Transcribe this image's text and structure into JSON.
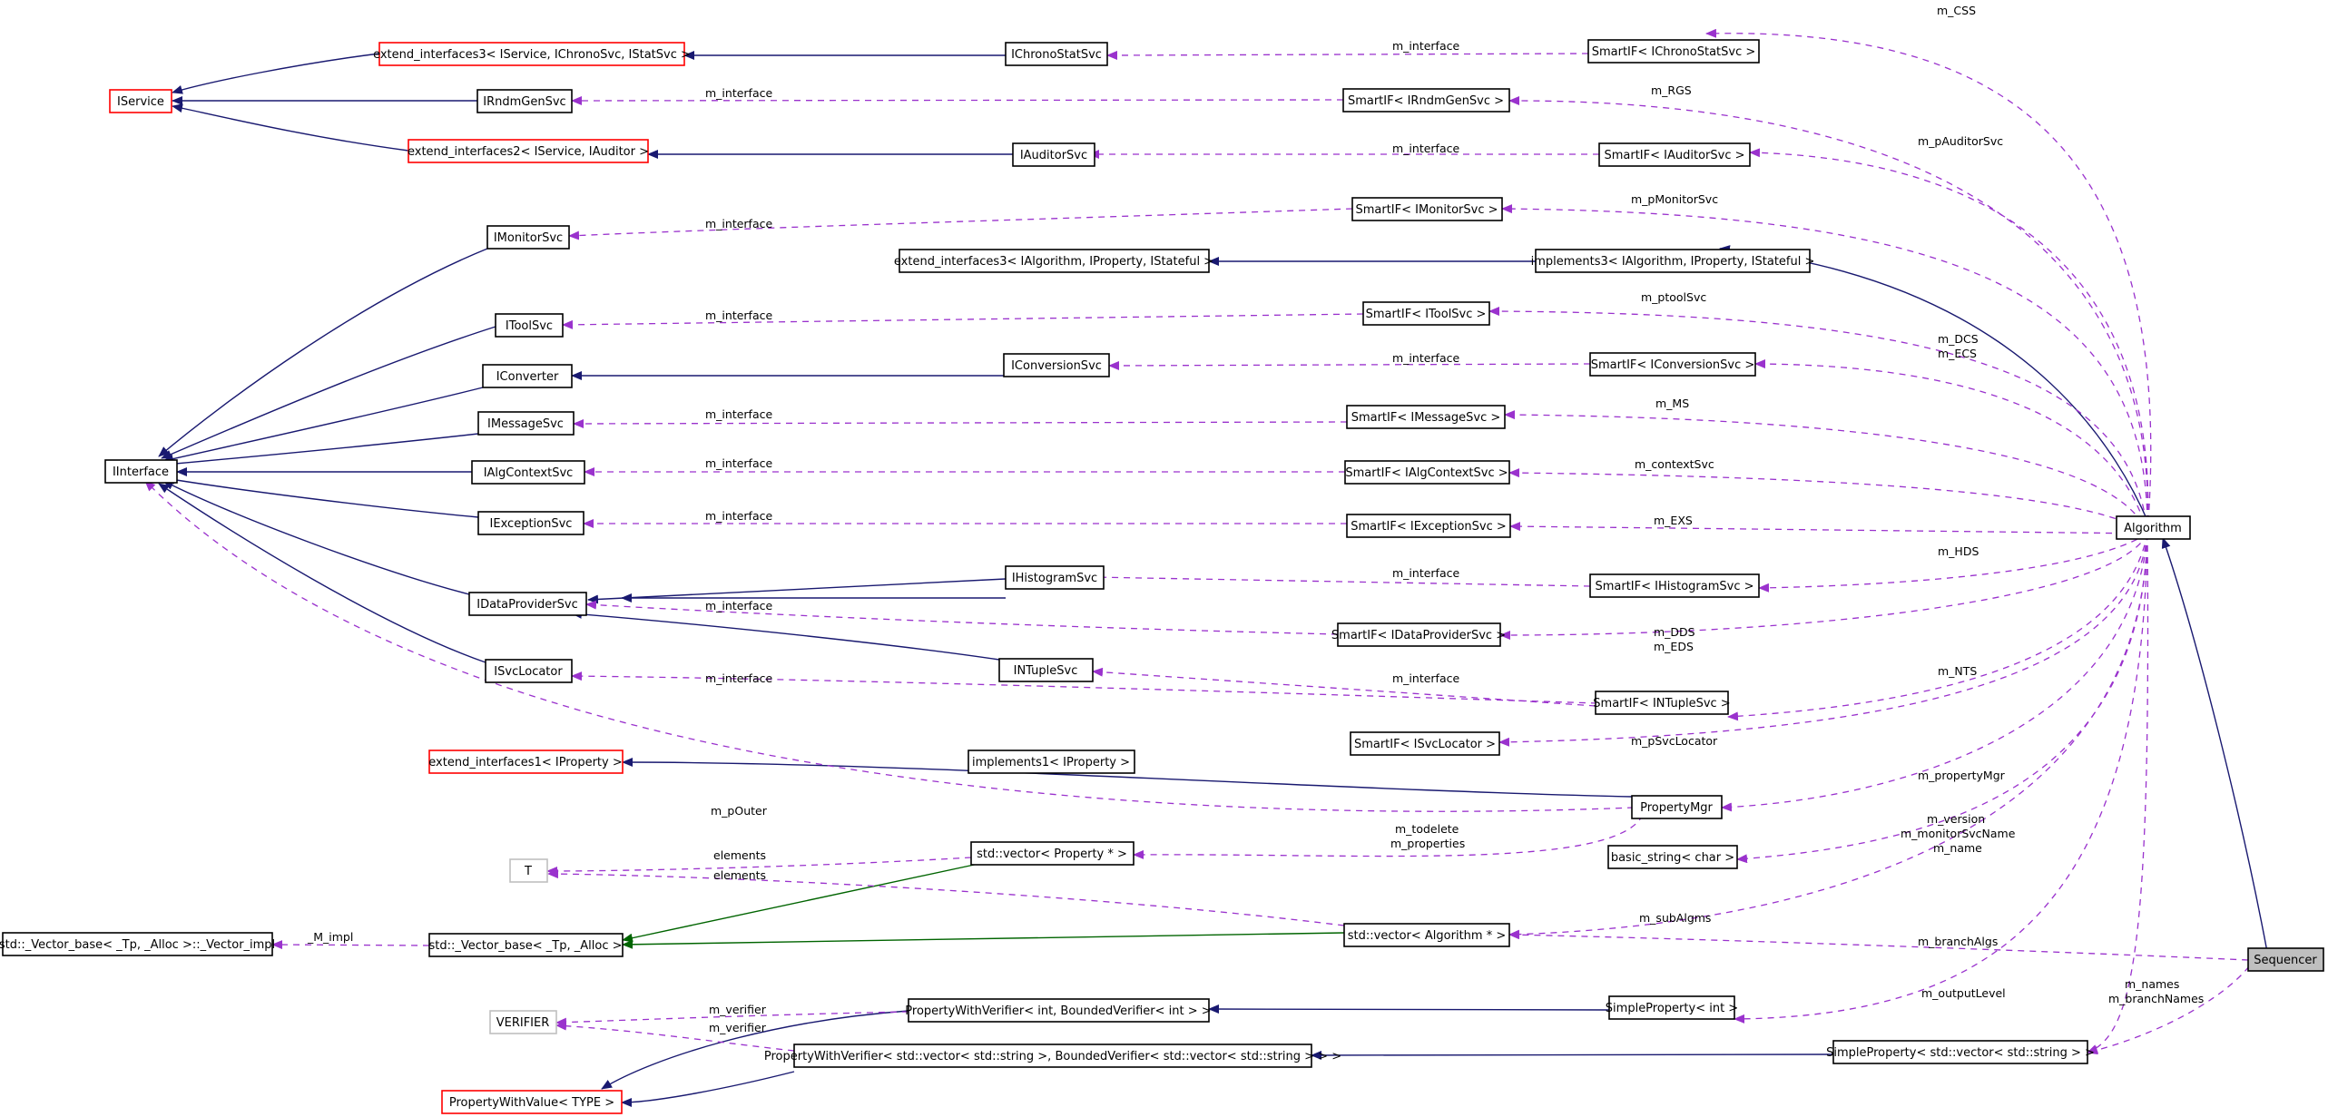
{
  "colors": {
    "inheritance": "#191970",
    "template_instance": "#006400",
    "usage": "#9a32cd",
    "node_border": "#000000",
    "incomplete_node_border": "#ff0000",
    "external_node_border": "#bfbfbf",
    "highlight_fill": "#bfbfbf"
  },
  "nodes": {
    "IService": "IService",
    "extend3chrono": "extend_interfaces3< IService, IChronoSvc, IStatSvc >",
    "extend2auditor": "extend_interfaces2< IService, IAuditor >",
    "IChronoStatSvc": "IChronoStatSvc",
    "IRndmGenSvc": "IRndmGenSvc",
    "IAuditorSvc": "IAuditorSvc",
    "SmartChrono": "SmartIF< IChronoStatSvc >",
    "SmartRndm": "SmartIF< IRndmGenSvc >",
    "SmartAuditor": "SmartIF< IAuditorSvc >",
    "SmartMonitor": "SmartIF< IMonitorSvc >",
    "IMonitorSvc": "IMonitorSvc",
    "extend3alg": "extend_interfaces3< IAlgorithm, IProperty, IStateful >",
    "implements3": "implements3< IAlgorithm, IProperty, IStateful >",
    "IToolSvc": "IToolSvc",
    "SmartTool": "SmartIF< IToolSvc >",
    "IConverter": "IConverter",
    "IConversionSvc": "IConversionSvc",
    "SmartConversion": "SmartIF< IConversionSvc >",
    "IMessageSvc": "IMessageSvc",
    "SmartMessage": "SmartIF< IMessageSvc >",
    "IInterface": "IInterface",
    "IAlgContextSvc": "IAlgContextSvc",
    "SmartAlgContext": "SmartIF< IAlgContextSvc >",
    "IExceptionSvc": "IExceptionSvc",
    "SmartException": "SmartIF< IExceptionSvc >",
    "Algorithm": "Algorithm",
    "IDataProviderSvc": "IDataProviderSvc",
    "IHistogramSvc": "IHistogramSvc",
    "SmartHistogram": "SmartIF< IHistogramSvc >",
    "SmartDataProvider": "SmartIF< IDataProviderSvc >",
    "ISvcLocator": "ISvcLocator",
    "INTupleSvc": "INTupleSvc",
    "SmartNTuple": "SmartIF< INTupleSvc >",
    "SmartSvcLocator": "SmartIF< ISvcLocator >",
    "extend1prop": "extend_interfaces1< IProperty >",
    "implements1": "implements1< IProperty >",
    "PropertyMgr": "PropertyMgr",
    "T": "T",
    "vectorProperty": "std::vector< Property * >",
    "basicString": "basic_string< char >",
    "vectorImpl": "std::_Vector_base< _Tp, _Alloc >::_Vector_impl",
    "vectorBase": "std::_Vector_base< _Tp, _Alloc >",
    "vectorAlgorithm": "std::vector< Algorithm * >",
    "Sequencer": "Sequencer",
    "VERIFIER": "VERIFIER",
    "pwvInt": "PropertyWithVerifier< int, BoundedVerifier< int > >",
    "simpleInt": "SimpleProperty< int >",
    "pwvVector": "PropertyWithVerifier< std::vector< std::string >, BoundedVerifier< std::vector< std::string > > >",
    "simpleVector": "SimpleProperty< std::vector< std::string > >",
    "PropertyWithValue": "PropertyWithValue< TYPE >"
  },
  "edge_labels": {
    "m_interface": "m_interface",
    "m_CSS": "m_CSS",
    "m_RGS": "m_RGS",
    "m_pAuditorSvc": "m_pAuditorSvc",
    "m_pMonitorSvc": "m_pMonitorSvc",
    "m_ptoolSvc": "m_ptoolSvc",
    "m_DCS": "m_DCS",
    "m_ECS": "m_ECS",
    "m_MS": "m_MS",
    "m_contextSvc": "m_contextSvc",
    "m_EXS": "m_EXS",
    "m_HDS": "m_HDS",
    "m_DDS": "m_DDS",
    "m_EDS": "m_EDS",
    "m_NTS": "m_NTS",
    "m_pSvcLocator": "m_pSvcLocator",
    "m_propertyMgr": "m_propertyMgr",
    "m_pOuter": "m_pOuter",
    "m_todelete": "m_todelete",
    "m_properties": "m_properties",
    "elements": "elements",
    "m_version": "m_version",
    "m_monitorSvcName": "m_monitorSvcName",
    "m_name": "m_name",
    "M_impl": "_M_impl",
    "m_subAlgms": "m_subAlgms",
    "m_branchAlgs": "m_branchAlgs",
    "m_outputLevel": "m_outputLevel",
    "m_names": "m_names",
    "m_branchNames": "m_branchNames",
    "m_verifier": "m_verifier"
  }
}
